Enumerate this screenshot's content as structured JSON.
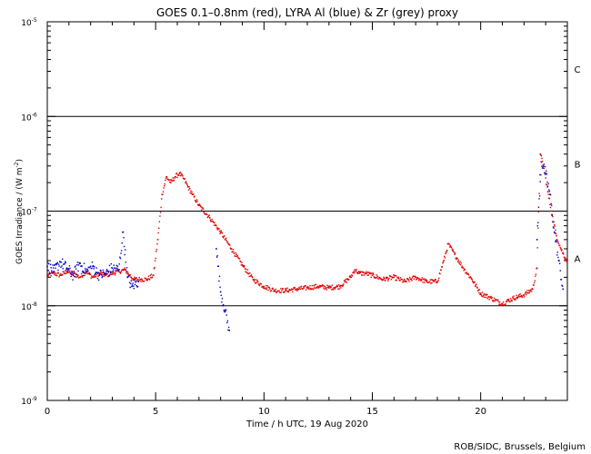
{
  "chart_data": {
    "type": "scatter",
    "title": "GOES 0.1–0.8nm (red), LYRA Al (blue) & Zr (grey) proxy",
    "xlabel": "Time / h UTC, 19 Aug 2020",
    "ylabel": "GOES Irradiance / (W m",
    "ylabel_sup": "-2",
    "ylabel_close": ")",
    "xlim": [
      0,
      24
    ],
    "ylim_log10": [
      -9,
      -5
    ],
    "x_ticks": [
      0,
      5,
      10,
      15,
      20
    ],
    "x_tick_labels": [
      "0",
      "5",
      "10",
      "15",
      "20"
    ],
    "y_ticks_log10": [
      -9,
      -8,
      -7,
      -6,
      -5
    ],
    "y_tick_labels": [
      {
        "base": "10",
        "exp": "-9"
      },
      {
        "base": "10",
        "exp": "-8"
      },
      {
        "base": "10",
        "exp": "-7"
      },
      {
        "base": "10",
        "exp": "-6"
      },
      {
        "base": "10",
        "exp": "-5"
      }
    ],
    "flare_class_lines_log10": [
      -8,
      -7,
      -6
    ],
    "flare_classes": [
      {
        "label": "A",
        "log10": -7.5
      },
      {
        "label": "B",
        "log10": -6.5
      },
      {
        "label": "C",
        "log10": -5.5
      }
    ],
    "credit": "ROB/SIDC, Brussels, Belgium",
    "series": [
      {
        "name": "GOES 0.1-0.8nm",
        "color": "#e00000",
        "x": [
          0,
          0.3,
          0.6,
          0.9,
          1.2,
          1.5,
          1.8,
          2.1,
          2.4,
          2.7,
          3.0,
          3.3,
          3.6,
          3.8,
          4.0,
          4.3,
          4.6,
          4.9,
          5.1,
          5.3,
          5.5,
          5.7,
          5.9,
          6.1,
          6.3,
          6.5,
          6.7,
          7.0,
          7.5,
          8.0,
          8.5,
          9.0,
          9.5,
          10.0,
          10.5,
          11.0,
          11.5,
          12.0,
          12.5,
          13.0,
          13.5,
          14.0,
          14.2,
          14.4,
          14.7,
          15.0,
          15.5,
          16.0,
          16.5,
          17.0,
          17.5,
          18.0,
          18.3,
          18.5,
          18.8,
          19.2,
          19.6,
          20.0,
          20.5,
          21.0,
          21.5,
          22.0,
          22.4,
          22.6,
          22.75,
          22.9,
          23.1,
          23.3,
          23.5,
          23.7,
          23.9,
          24.0
        ],
        "y": [
          2.1e-08,
          2.2e-08,
          2.1e-08,
          2.3e-08,
          2.2e-08,
          2e-08,
          2.3e-08,
          2e-08,
          2.2e-08,
          2.1e-08,
          2.2e-08,
          2.3e-08,
          2.4e-08,
          2.1e-08,
          1.9e-08,
          1.9e-08,
          1.9e-08,
          2.1e-08,
          5e-08,
          1.5e-07,
          2.3e-07,
          2e-07,
          2.3e-07,
          2.5e-07,
          2.2e-07,
          1.8e-07,
          1.5e-07,
          1.15e-07,
          8.5e-08,
          6e-08,
          4e-08,
          2.7e-08,
          1.9e-08,
          1.6e-08,
          1.45e-08,
          1.45e-08,
          1.5e-08,
          1.55e-08,
          1.6e-08,
          1.55e-08,
          1.6e-08,
          2e-08,
          2.4e-08,
          2.2e-08,
          2.2e-08,
          2.1e-08,
          1.9e-08,
          2e-08,
          1.8e-08,
          2e-08,
          1.8e-08,
          1.8e-08,
          3e-08,
          4.5e-08,
          3.5e-08,
          2.5e-08,
          1.9e-08,
          1.35e-08,
          1.2e-08,
          1.05e-08,
          1.2e-08,
          1.3e-08,
          1.5e-08,
          2.5e-08,
          4e-07,
          3e-07,
          1.6e-07,
          9e-08,
          5.5e-08,
          4e-08,
          3.2e-08,
          3e-08
        ]
      },
      {
        "name": "LYRA Al proxy",
        "color": "#0000cc",
        "x": [
          0,
          0.3,
          0.6,
          0.9,
          1.2,
          1.5,
          1.8,
          2.1,
          2.4,
          2.7,
          3.0,
          3.3,
          3.5,
          3.7,
          3.9,
          4.2,
          7.8,
          8.0,
          8.2,
          8.4,
          22.6,
          22.8,
          23.0,
          23.2,
          23.4,
          23.6,
          23.8
        ],
        "y": [
          2.6e-08,
          2.3e-08,
          2.9e-08,
          2.5e-08,
          2.1e-08,
          2.8e-08,
          2.3e-08,
          2.6e-08,
          2.1e-08,
          2.2e-08,
          2.5e-08,
          2.4e-08,
          6e-08,
          2e-08,
          1.6e-08,
          1.8e-08,
          4e-08,
          1.4e-08,
          9e-09,
          5.5e-09,
          5e-08,
          3.3e-07,
          2.5e-07,
          1.5e-07,
          6e-08,
          3e-08,
          1.5e-08
        ]
      }
    ]
  }
}
